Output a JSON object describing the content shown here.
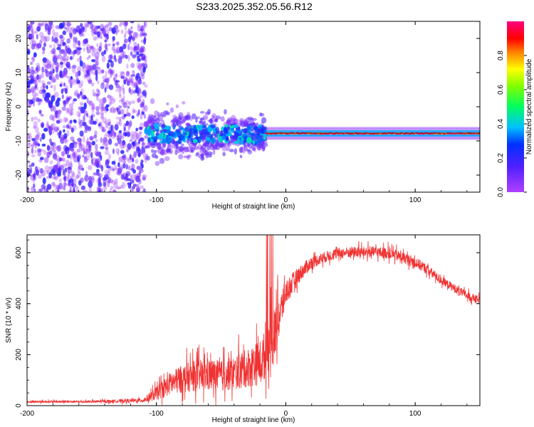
{
  "title": "S233.2025.352.05.56.R12",
  "colors": {
    "spectrum_low": "#a020f0",
    "snr_line": "#f03232",
    "axis": "#000000"
  },
  "chart_data": [
    {
      "type": "heatmap",
      "name": "spectrogram",
      "xlabel": "Height of straight line (km)",
      "ylabel": "Frequency (Hz)",
      "xlim": [
        -200,
        150
      ],
      "ylim": [
        -25,
        25
      ],
      "xticks": [
        -200,
        -100,
        0,
        100
      ],
      "yticks": [
        -20,
        -10,
        0,
        10,
        20
      ],
      "colorbar": {
        "label": "Normalized spectral amplitude",
        "range": [
          0,
          1
        ],
        "ticks": [
          "0.0",
          "0.2",
          "0.4",
          "0.6",
          "0.8"
        ],
        "colormap": "rainbow (violet → blue → cyan → green → yellow → red → magenta)"
      },
      "regions": [
        {
          "x_range": [
            -200,
            -108
          ],
          "freq_range": [
            -25,
            25
          ],
          "amplitude": "low, scattered noise"
        },
        {
          "x_range": [
            -108,
            -15
          ],
          "freq_center": -8,
          "freq_spread": 6,
          "amplitude": "0.1–0.5 blobs"
        },
        {
          "x_range": [
            -15,
            150
          ],
          "freq_center": -7.8,
          "amplitude": "0.8–1.0 narrow line"
        }
      ]
    },
    {
      "type": "line",
      "name": "snr",
      "xlabel": "Height of straight line (km)",
      "ylabel": "SNR (10 * v/v)",
      "xlim": [
        -200,
        150
      ],
      "ylim": [
        0,
        670
      ],
      "xticks": [
        -200,
        -100,
        0,
        100
      ],
      "yticks": [
        0,
        200,
        400,
        600
      ],
      "series": [
        {
          "name": "SNR",
          "envelope_x": [
            -200,
            -150,
            -110,
            -100,
            -90,
            -80,
            -70,
            -60,
            -50,
            -40,
            -30,
            -20,
            -15,
            -10,
            -5,
            0,
            10,
            20,
            30,
            40,
            50,
            60,
            70,
            80,
            90,
            100,
            110,
            120,
            130,
            140,
            150
          ],
          "envelope_y": [
            15,
            15,
            20,
            45,
            80,
            100,
            110,
            115,
            110,
            120,
            140,
            160,
            200,
            250,
            340,
            440,
            510,
            560,
            580,
            595,
            600,
            600,
            600,
            595,
            580,
            560,
            530,
            490,
            460,
            430,
            410
          ],
          "noise_amp": [
            8,
            8,
            15,
            50,
            80,
            100,
            110,
            120,
            110,
            120,
            140,
            160,
            180,
            200,
            150,
            90,
            60,
            45,
            40,
            40,
            40,
            40,
            40,
            40,
            40,
            40,
            35,
            30,
            30,
            30,
            30
          ]
        }
      ]
    }
  ]
}
